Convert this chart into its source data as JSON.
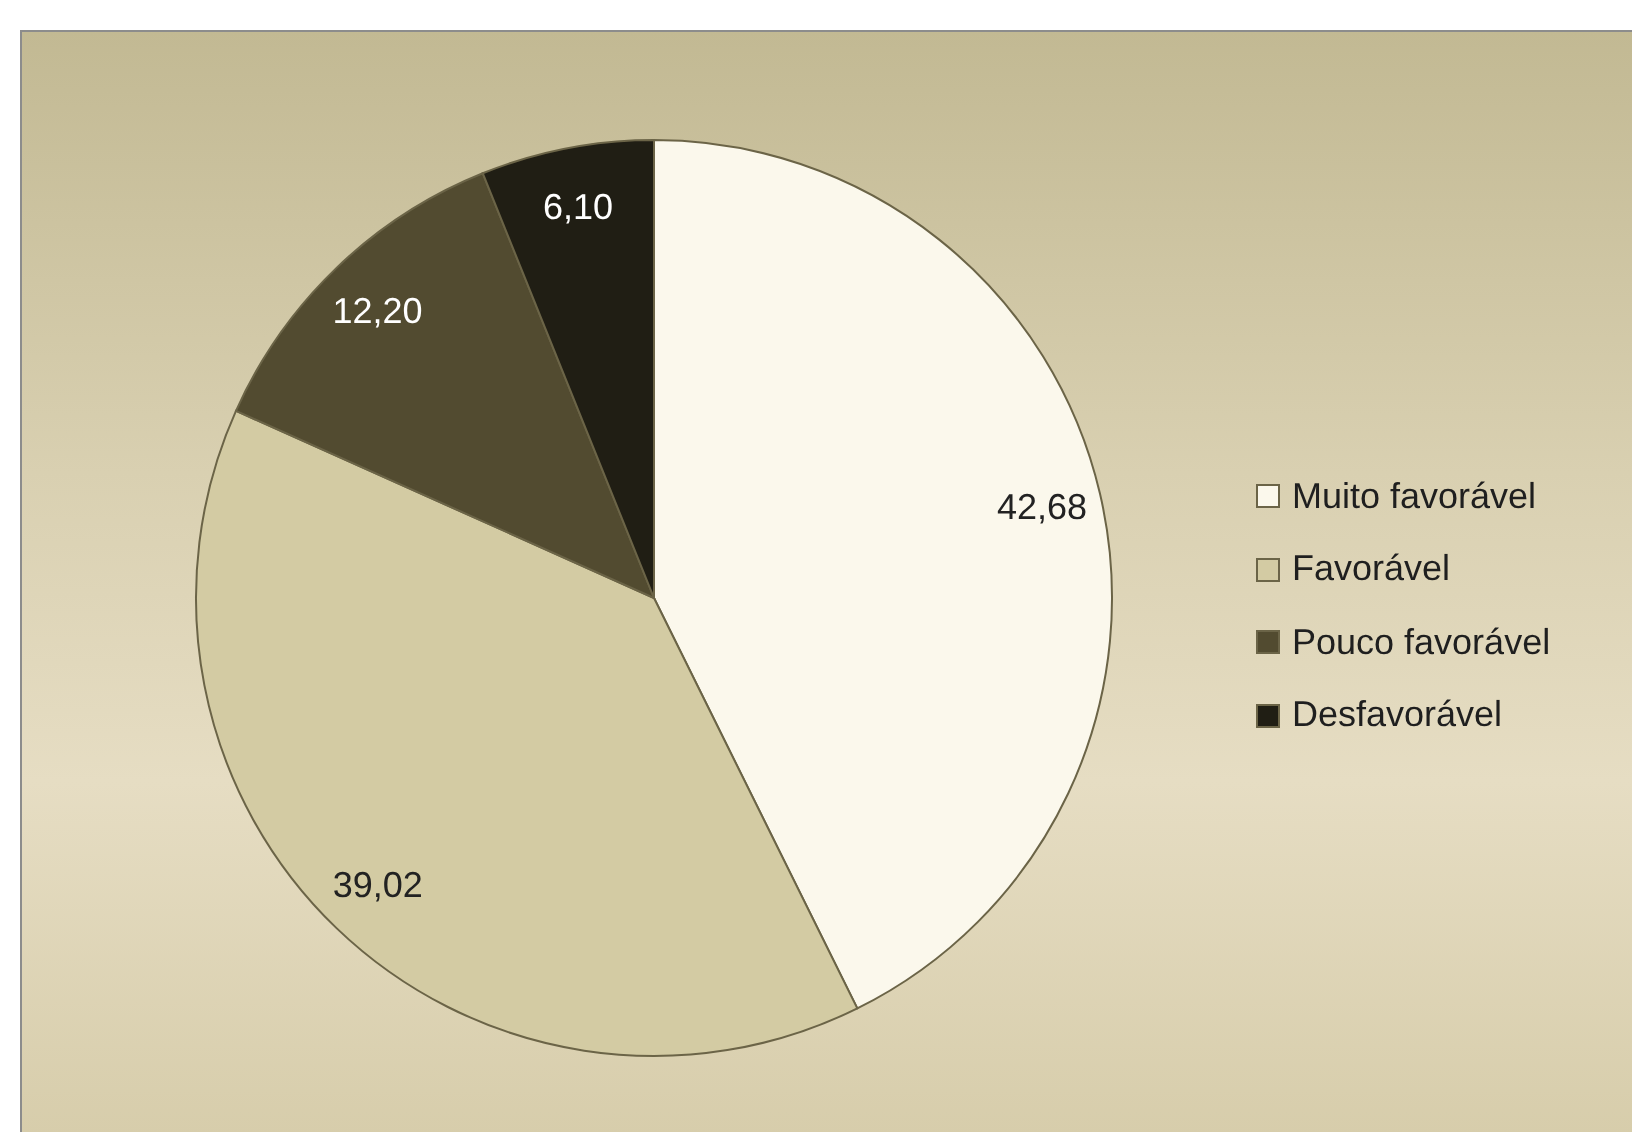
{
  "chart_data": {
    "type": "pie",
    "categories": [
      "Muito favorável",
      "Favorável",
      "Pouco favorável",
      "Desfavorável"
    ],
    "values": [
      42.68,
      39.02,
      12.2,
      6.1
    ],
    "colors": [
      "#fbf8ec",
      "#d3cba3",
      "#524b30",
      "#201e14"
    ],
    "value_labels": [
      "42,68",
      "39,02",
      "12,20",
      "6,10"
    ],
    "legend": "right"
  }
}
